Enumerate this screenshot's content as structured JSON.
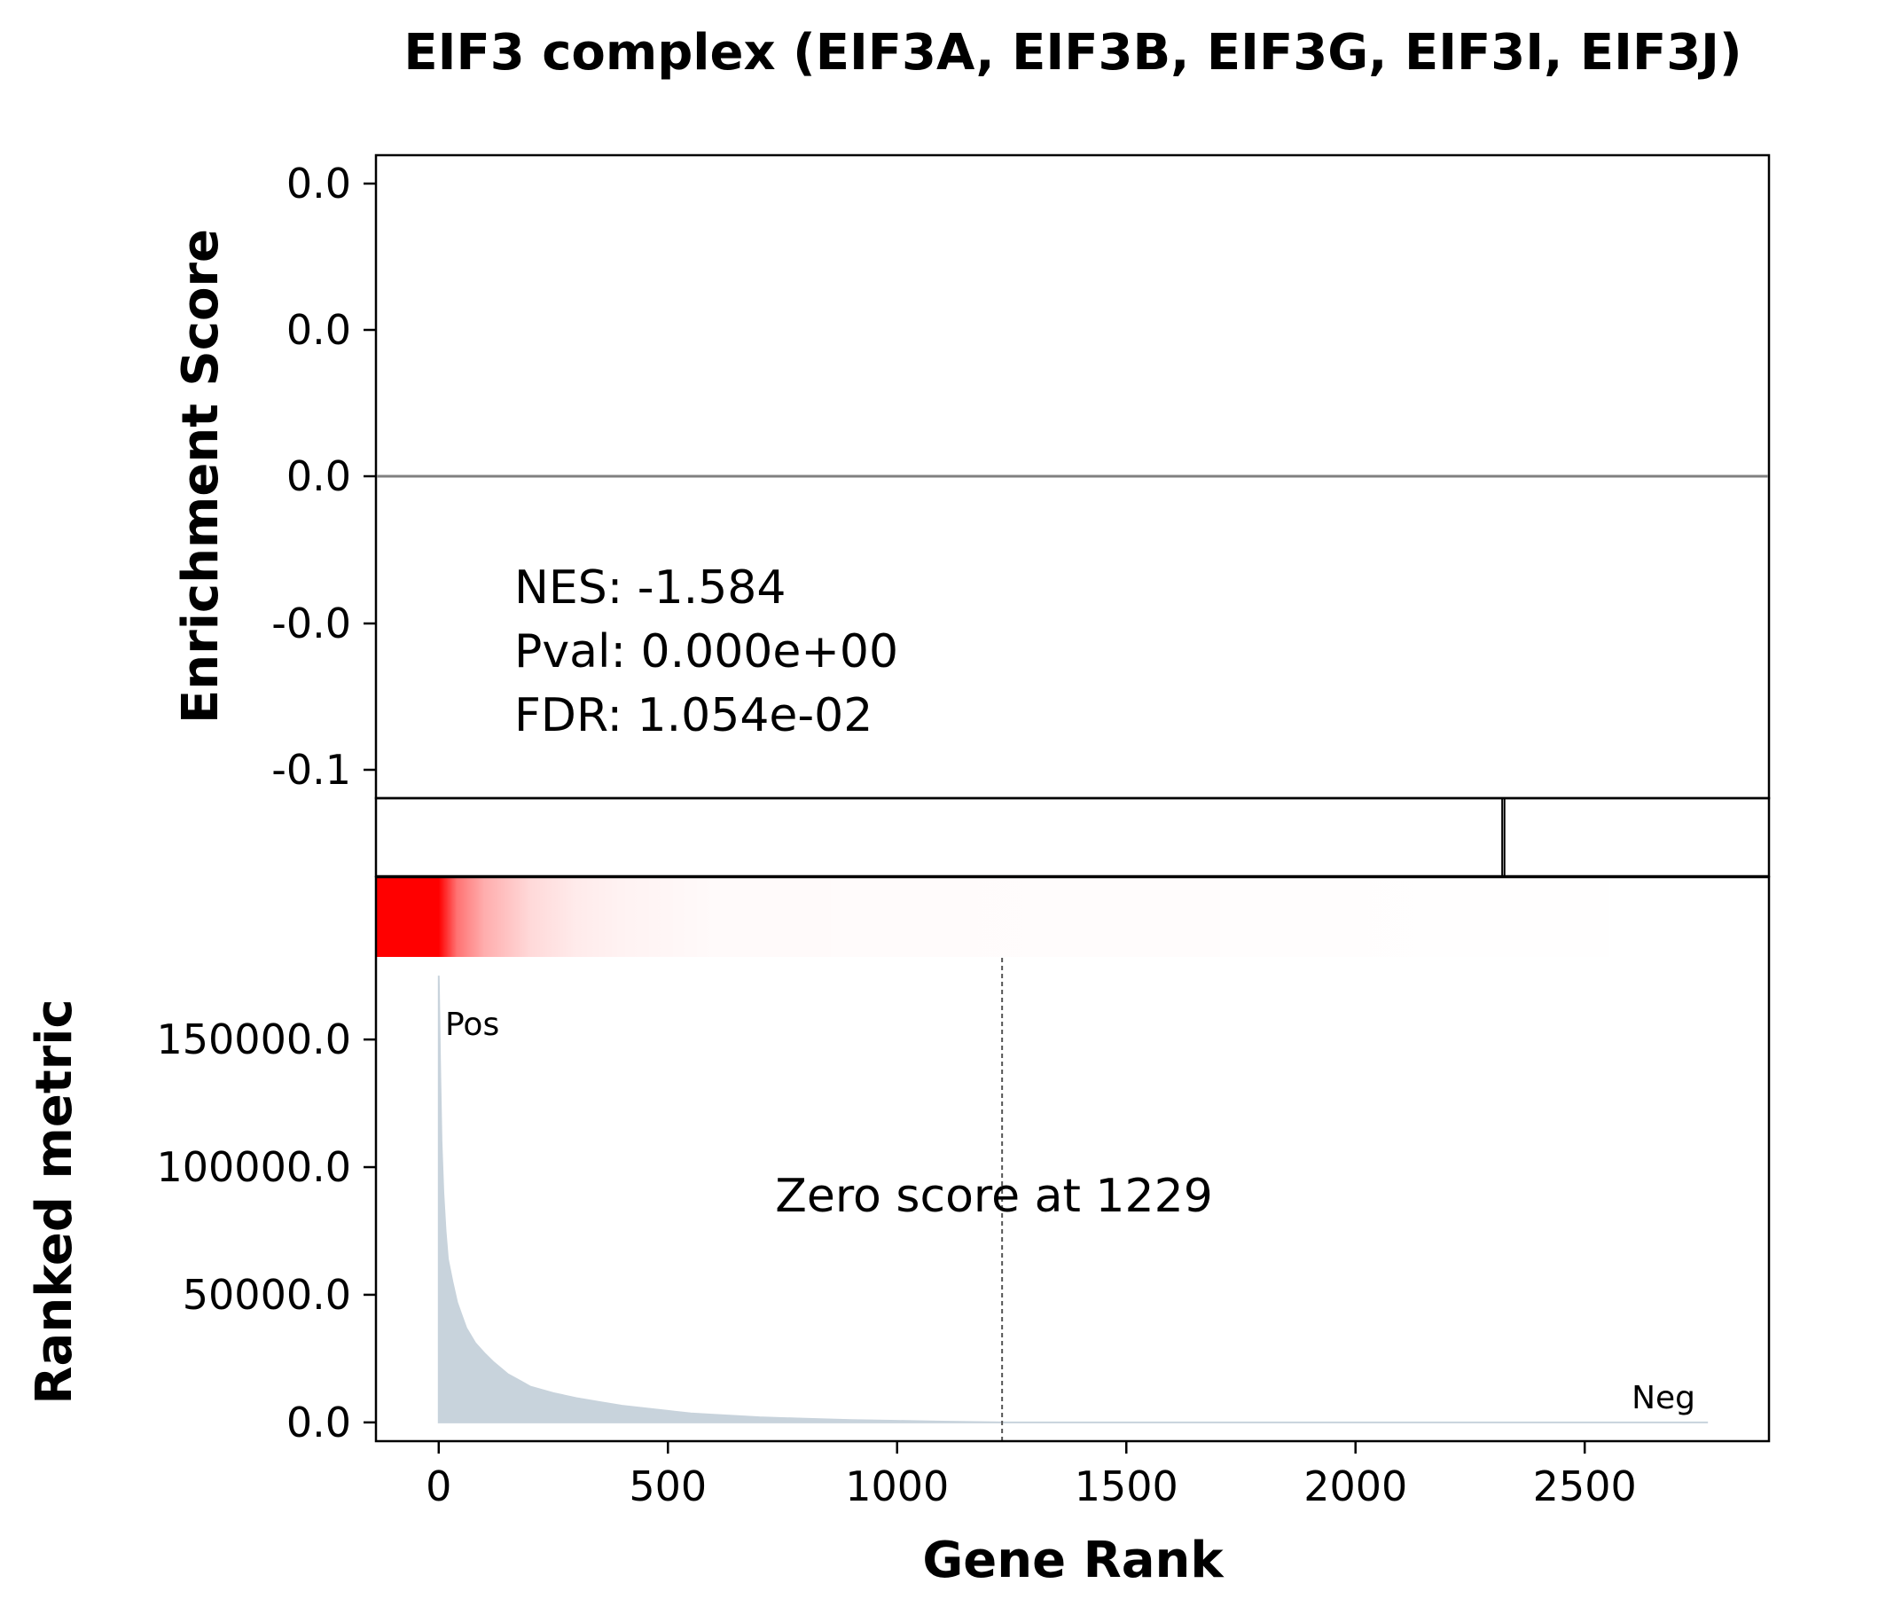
{
  "chart_data": {
    "type": "area",
    "title": "EIF3 complex (EIF3A, EIF3B, EIF3G, EIF3I, EIF3J)",
    "xlabel": "Gene Rank",
    "xlim": [
      -135,
      2900
    ],
    "xticks": [
      "0",
      "500",
      "1000",
      "1500",
      "2000",
      "2500"
    ],
    "xtick_values": [
      0,
      500,
      1000,
      1500,
      2000,
      2500
    ],
    "enrichment_panel": {
      "ylabel": "Enrichment Score",
      "ytick_labels": [
        "0.0",
        "0.0",
        "0.0",
        "-0.0",
        "-0.1"
      ],
      "zero_line_color": "#808080",
      "stats": {
        "nes": "NES: -1.584",
        "pval": "Pval: 0.000e+00",
        "fdr": "FDR: 1.054e-02"
      }
    },
    "hit_panel": {
      "hits": [
        2320,
        2325
      ],
      "color": "#000000"
    },
    "heatmap": {
      "color": "#ff0000",
      "description_points": [
        {
          "rank": 0,
          "intensity": 1.0
        },
        {
          "rank": 40,
          "intensity": 0.55
        },
        {
          "rank": 100,
          "intensity": 0.32
        },
        {
          "rank": 200,
          "intensity": 0.15
        },
        {
          "rank": 300,
          "intensity": 0.08
        },
        {
          "rank": 400,
          "intensity": 0.05
        },
        {
          "rank": 600,
          "intensity": 0.02
        },
        {
          "rank": 2767,
          "intensity": 0.0
        }
      ]
    },
    "metric_panel": {
      "ylabel": "Ranked metric",
      "ytick_labels": [
        "150000.0",
        "100000.0",
        "50000.0",
        "0.0"
      ],
      "ytick_values": [
        150000,
        100000,
        50000,
        0
      ],
      "ylim": [
        -7000,
        182000
      ],
      "fill_color": "#c8d3dc",
      "pos_label": "Pos",
      "pos_color": "#ff0000",
      "neg_label": "Neg",
      "neg_color": "#0000ff",
      "zero_score_rank": 1229,
      "zero_score_text": "Zero score at 1229",
      "curve": [
        {
          "rank": 0,
          "value": 175000
        },
        {
          "rank": 3,
          "value": 140000
        },
        {
          "rank": 6,
          "value": 110000
        },
        {
          "rank": 10,
          "value": 90000
        },
        {
          "rank": 15,
          "value": 75000
        },
        {
          "rank": 20,
          "value": 64000
        },
        {
          "rank": 30,
          "value": 55000
        },
        {
          "rank": 40,
          "value": 47000
        },
        {
          "rank": 50,
          "value": 42000
        },
        {
          "rank": 60,
          "value": 37000
        },
        {
          "rank": 80,
          "value": 31000
        },
        {
          "rank": 100,
          "value": 27000
        },
        {
          "rank": 120,
          "value": 23500
        },
        {
          "rank": 150,
          "value": 19000
        },
        {
          "rank": 180,
          "value": 16000
        },
        {
          "rank": 200,
          "value": 14000
        },
        {
          "rank": 250,
          "value": 11500
        },
        {
          "rank": 300,
          "value": 9500
        },
        {
          "rank": 350,
          "value": 8000
        },
        {
          "rank": 400,
          "value": 6500
        },
        {
          "rank": 450,
          "value": 5500
        },
        {
          "rank": 500,
          "value": 4500
        },
        {
          "rank": 550,
          "value": 3500
        },
        {
          "rank": 600,
          "value": 3000
        },
        {
          "rank": 700,
          "value": 2000
        },
        {
          "rank": 800,
          "value": 1400
        },
        {
          "rank": 900,
          "value": 900
        },
        {
          "rank": 1000,
          "value": 600
        },
        {
          "rank": 1100,
          "value": 300
        },
        {
          "rank": 1229,
          "value": 0
        },
        {
          "rank": 1500,
          "value": 0
        },
        {
          "rank": 2000,
          "value": 0
        },
        {
          "rank": 2767,
          "value": 0
        }
      ]
    }
  }
}
